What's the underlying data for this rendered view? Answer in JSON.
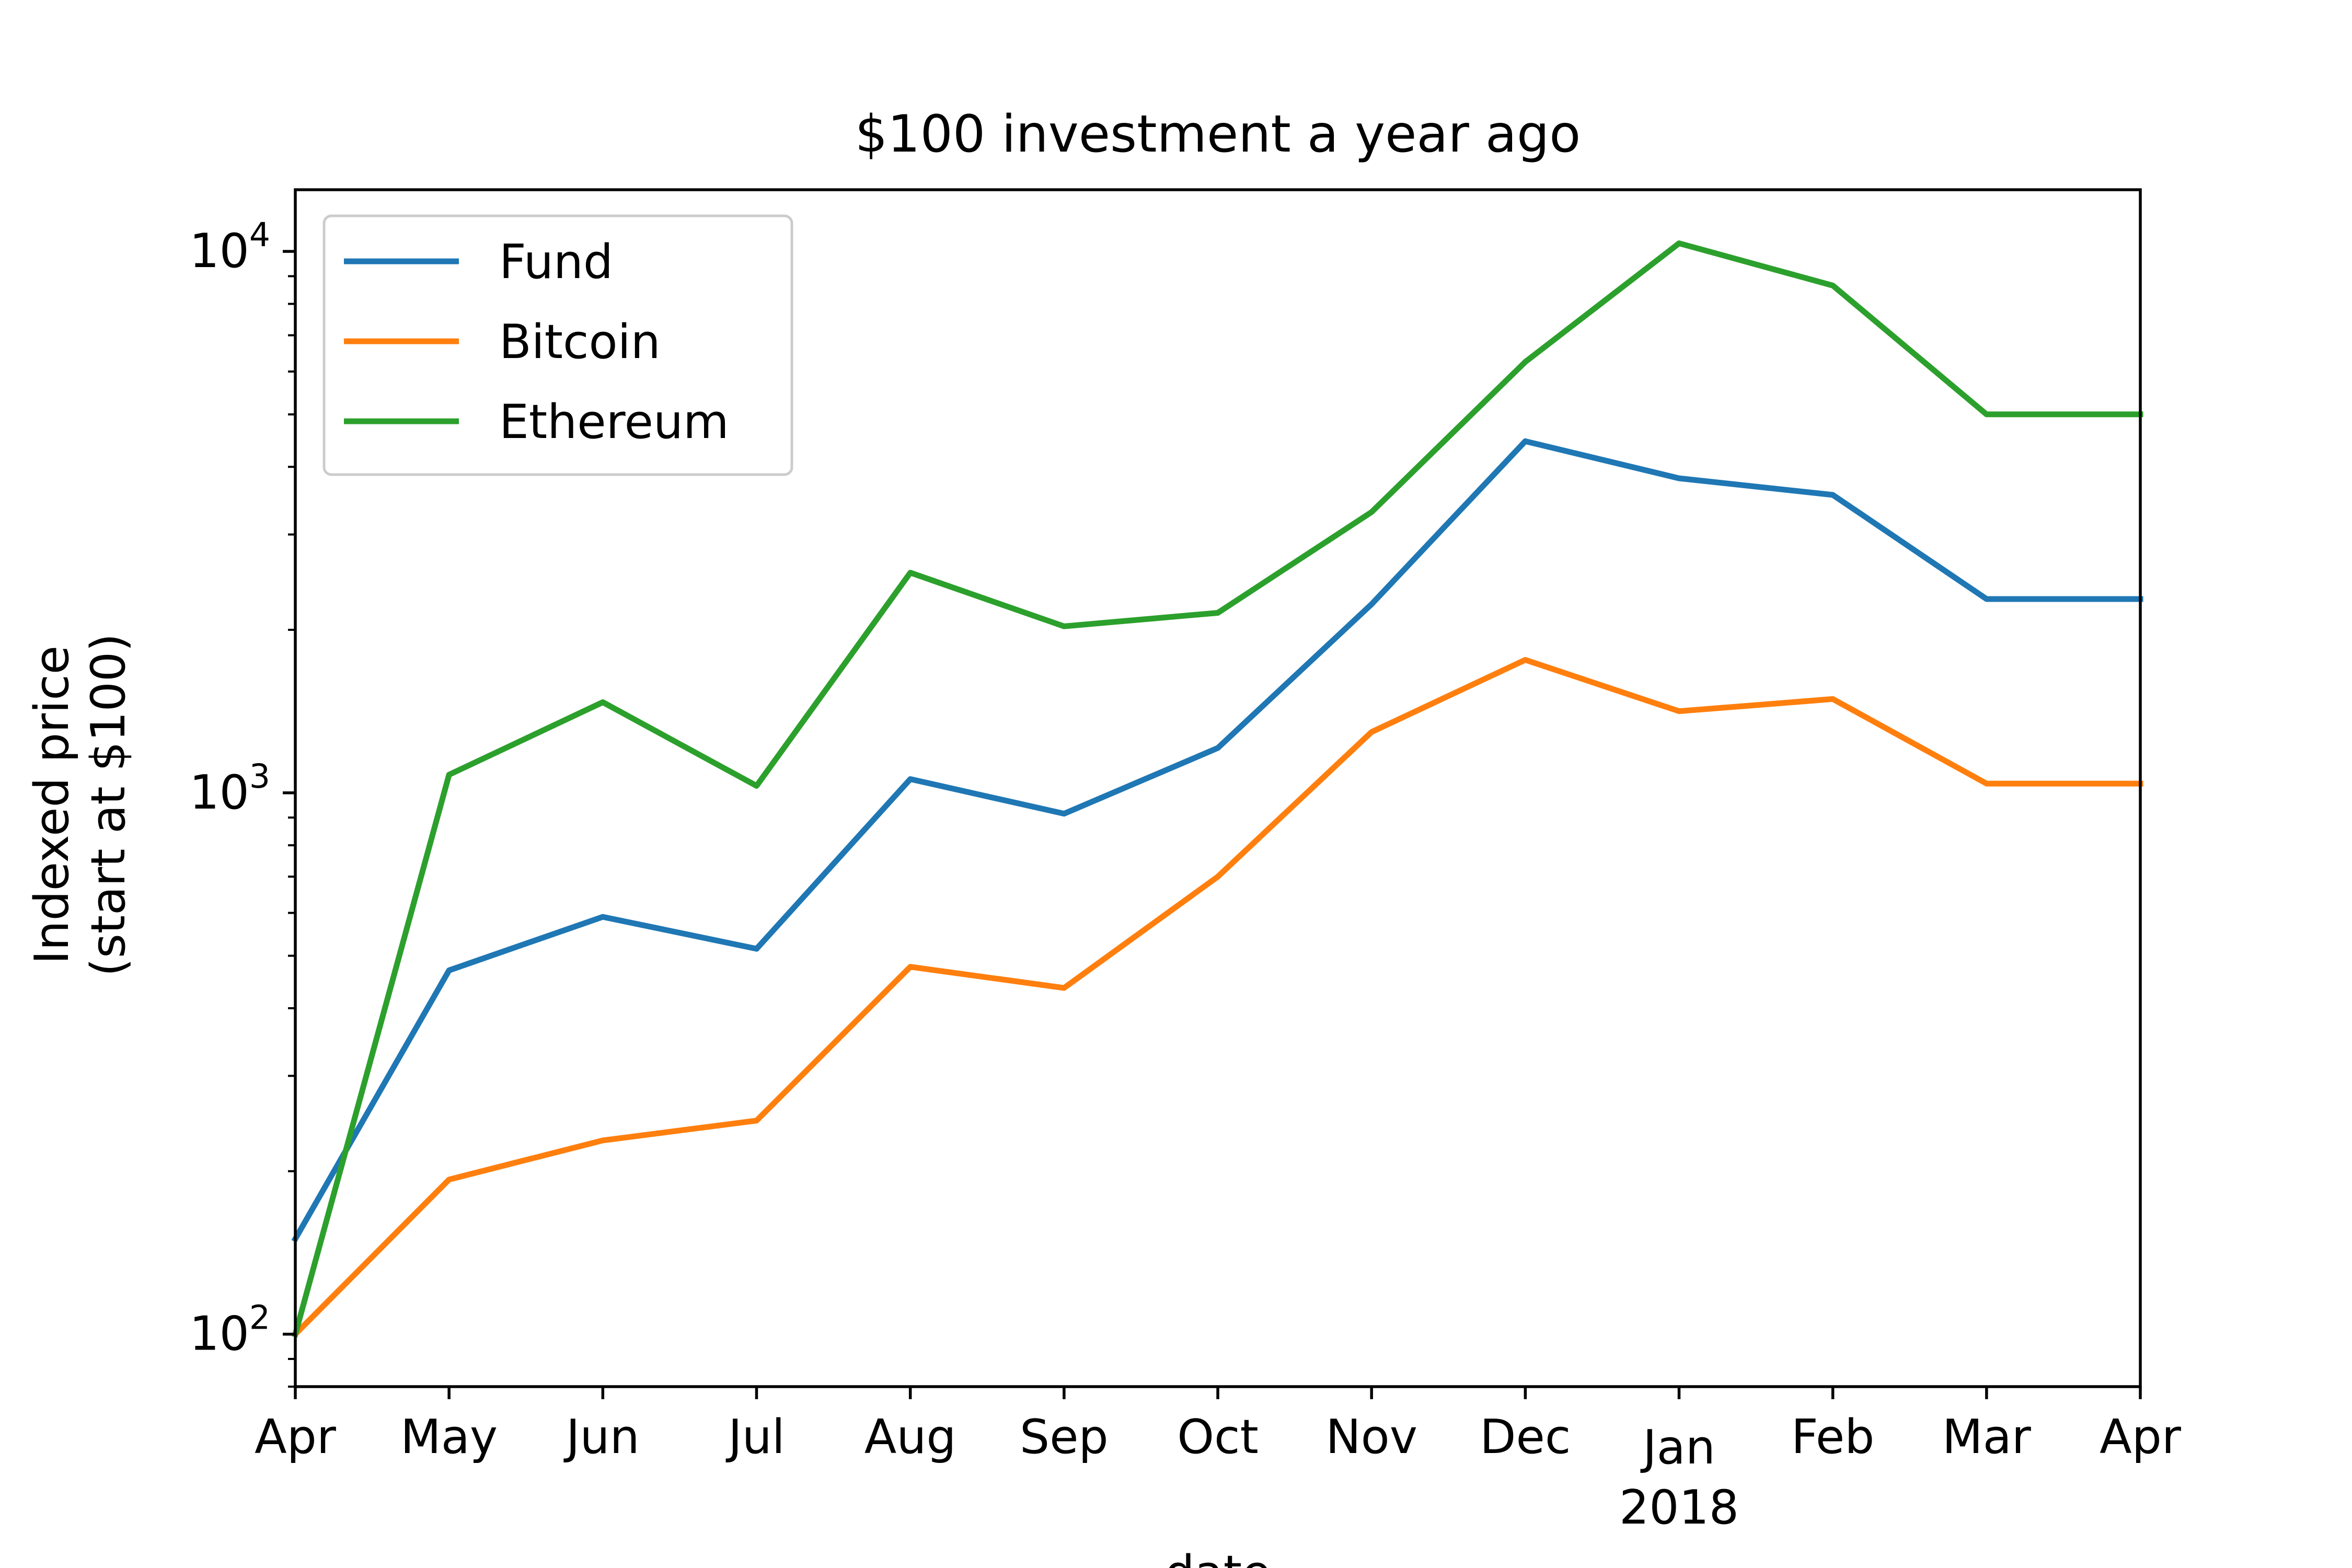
{
  "chart_data": {
    "type": "line",
    "title": "$100 investment a year ago",
    "xlabel": "date",
    "ylabel_line1": "Indexed price",
    "ylabel_line2": "(start at $100)",
    "yscale": "log",
    "ylim": [
      80,
      13000
    ],
    "y_ticks": [
      {
        "value": 100,
        "base": "10",
        "exp": "2"
      },
      {
        "value": 1000,
        "base": "10",
        "exp": "3"
      },
      {
        "value": 10000,
        "base": "10",
        "exp": "4"
      }
    ],
    "x_year_label": "2018",
    "categories": [
      "Apr",
      "May",
      "Jun",
      "Jul",
      "Aug",
      "Sep",
      "Oct",
      "Nov",
      "Dec",
      "Jan",
      "Feb",
      "Mar",
      "Apr"
    ],
    "grid": false,
    "legend_position": "upper-left",
    "series": [
      {
        "name": "Fund",
        "color": "#1f77b4",
        "values": [
          150,
          470,
          590,
          515,
          1060,
          915,
          1210,
          2230,
          4460,
          3810,
          3550,
          2280,
          2280
        ]
      },
      {
        "name": "Bitcoin",
        "color": "#ff7f0e",
        "values": [
          100,
          193,
          228,
          248,
          477,
          436,
          700,
          1295,
          1760,
          1415,
          1490,
          1040,
          1040
        ]
      },
      {
        "name": "Ethereum",
        "color": "#2ca02c",
        "values": [
          100,
          1080,
          1470,
          1030,
          2550,
          2030,
          2150,
          3300,
          6250,
          10350,
          8650,
          5000,
          5000
        ]
      }
    ]
  }
}
